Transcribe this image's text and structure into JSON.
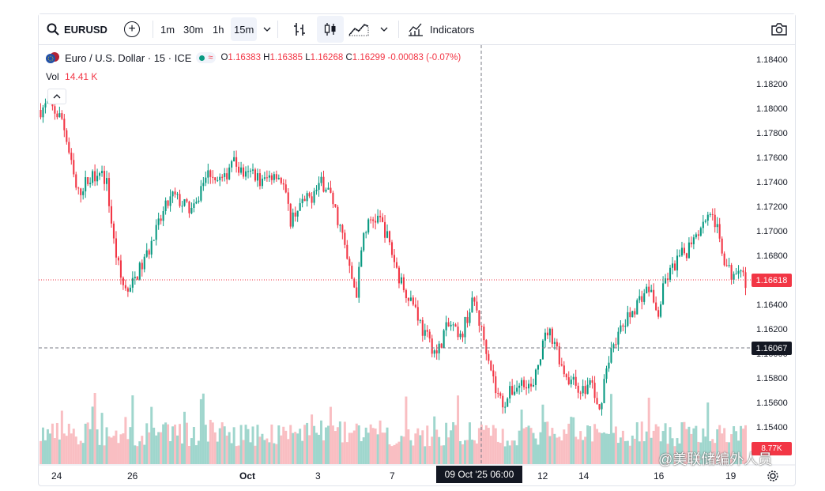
{
  "toolbar": {
    "symbol": "EURUSD",
    "intervals": [
      "1m",
      "30m",
      "1h",
      "15m"
    ],
    "indicators_label": "Indicators"
  },
  "legend": {
    "title": "Euro / U.S. Dollar · 15 · ICE",
    "open_label": "O",
    "open": "1.16383",
    "high_label": "H",
    "high": "1.16385",
    "low_label": "L",
    "low": "1.16268",
    "close_label": "C",
    "close": "1.16299",
    "change": "-0.00083 (-0.07%)"
  },
  "volume": {
    "label": "Vol",
    "value": "14.41 K"
  },
  "price_axis": {
    "ticks": [
      "1.18400",
      "1.18200",
      "1.18000",
      "1.17800",
      "1.17600",
      "1.17400",
      "1.17200",
      "1.17000",
      "1.16800",
      "1.16600",
      "1.16400",
      "1.16200",
      "1.16000",
      "1.15800",
      "1.15600",
      "1.15400"
    ],
    "current_price": "1.16618",
    "crosshair_price": "1.16067",
    "volume_tag": "8.77K"
  },
  "time_axis": {
    "ticks": [
      "24",
      "26",
      "Oct",
      "3",
      "7",
      "12",
      "14",
      "16",
      "19"
    ],
    "crosshair_time": "09 Oct '25   06:00"
  },
  "watermark": "@美联储编外人员",
  "colors": {
    "up": "#089981",
    "down": "#f23645",
    "up_vol": "#7fc8bc",
    "down_vol": "#f7a8ae"
  },
  "chart_data": {
    "type": "candlestick",
    "symbol": "EURUSD",
    "interval": "15",
    "ylim": [
      1.1525,
      1.185
    ],
    "approx_close_path": [
      1.18,
      1.1805,
      1.1798,
      1.1792,
      1.176,
      1.173,
      1.174,
      1.1745,
      1.1752,
      1.174,
      1.169,
      1.166,
      1.165,
      1.1665,
      1.1675,
      1.169,
      1.1705,
      1.172,
      1.173,
      1.1725,
      1.172,
      1.1718,
      1.174,
      1.175,
      1.1745,
      1.1742,
      1.176,
      1.1752,
      1.1745,
      1.175,
      1.174,
      1.1745,
      1.175,
      1.174,
      1.171,
      1.172,
      1.1725,
      1.173,
      1.174,
      1.1738,
      1.172,
      1.17,
      1.167,
      1.165,
      1.17,
      1.171,
      1.1712,
      1.17,
      1.168,
      1.166,
      1.165,
      1.164,
      1.162,
      1.161,
      1.16,
      1.162,
      1.1625,
      1.161,
      1.163,
      1.1645,
      1.162,
      1.16,
      1.157,
      1.156,
      1.157,
      1.1575,
      1.158,
      1.157,
      1.16,
      1.162,
      1.1612,
      1.159,
      1.158,
      1.1575,
      1.157,
      1.158,
      1.155,
      1.159,
      1.161,
      1.162,
      1.163,
      1.164,
      1.165,
      1.1655,
      1.163,
      1.166,
      1.167,
      1.168,
      1.1685,
      1.17,
      1.1705,
      1.172,
      1.1705,
      1.168,
      1.1665,
      1.1675,
      1.166
    ]
  }
}
